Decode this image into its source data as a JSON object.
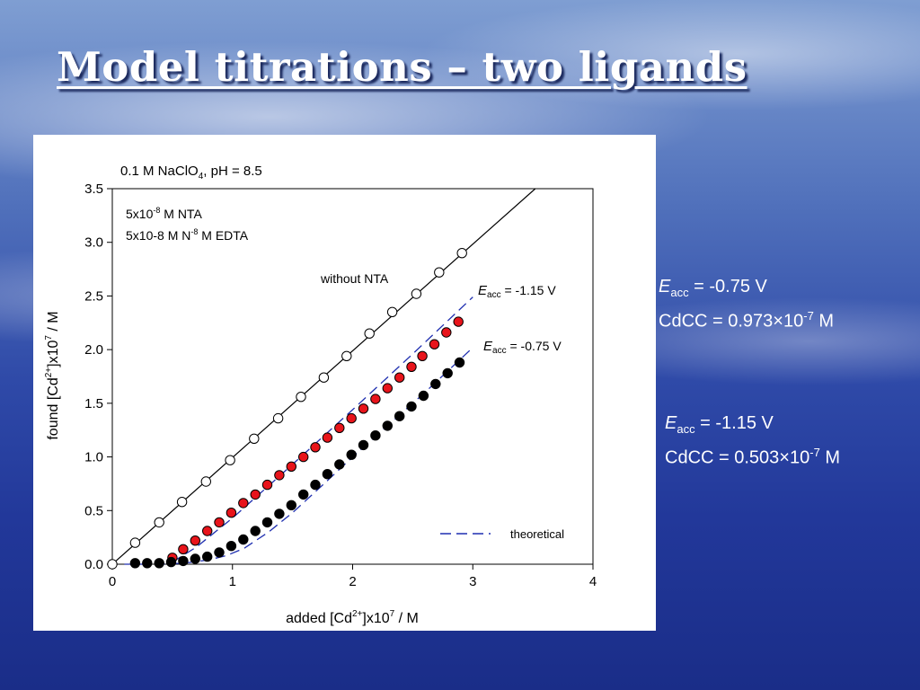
{
  "slide": {
    "title": "Model titrations – two ligands"
  },
  "notes": [
    {
      "e_symbol": "E",
      "e_sub": "acc",
      "e_value": " = -0.75 V",
      "cdcc_label": "CdCC = 0.973×10",
      "cdcc_exp": "-7",
      "cdcc_unit": " M"
    },
    {
      "e_symbol": "E",
      "e_sub": "acc",
      "e_value": " = -1.15 V",
      "cdcc_label": "CdCC = 0.503×10",
      "cdcc_exp": "-7",
      "cdcc_unit": " M"
    }
  ],
  "chart_data": {
    "type": "scatter",
    "title_parts": {
      "pre": "0.1 M NaClO",
      "sub": "4",
      "post": ", pH = 8.5"
    },
    "xlabel_parts": {
      "pre": "added [Cd",
      "sup1": "2+",
      "mid": "]x10",
      "sup2": "7",
      "post": " / M"
    },
    "ylabel_parts": {
      "pre": "found [Cd",
      "sup1": "2+",
      "mid": "]x10",
      "sup2": "7",
      "post": " / M"
    },
    "xlim": [
      0,
      4
    ],
    "ylim": [
      0,
      3.5
    ],
    "xticks": [
      "0",
      "1",
      "2",
      "3",
      "4"
    ],
    "yticks": [
      "0.0",
      "0.5",
      "1.0",
      "1.5",
      "2.0",
      "2.5",
      "3.0",
      "3.5"
    ],
    "conditions": [
      {
        "pre": "5x10",
        "sup": "-8",
        "post": " M NTA"
      },
      {
        "pre": "5x10-8 M N",
        "sup": "-8",
        "post": " M EDTA"
      }
    ],
    "annotations": {
      "without_nta": "without NTA",
      "eacc_115": {
        "symbol": "E",
        "sub": "acc",
        "value": " = -1.15 V"
      },
      "eacc_075": {
        "symbol": "E",
        "sub": "acc",
        "value": " = -0.75 V"
      }
    },
    "legend": {
      "entries": [
        "theoretical"
      ],
      "position": "bottom-right"
    },
    "series": [
      {
        "name": "without NTA",
        "style": "open-circle",
        "color": "#ffffff",
        "x": [
          0,
          0.19,
          0.39,
          0.58,
          0.78,
          0.98,
          1.18,
          1.38,
          1.57,
          1.76,
          1.95,
          2.14,
          2.33,
          2.53,
          2.72,
          2.91
        ],
        "y": [
          0,
          0.2,
          0.39,
          0.58,
          0.77,
          0.97,
          1.17,
          1.36,
          1.56,
          1.74,
          1.94,
          2.15,
          2.35,
          2.52,
          2.72,
          2.9
        ]
      },
      {
        "name": "Eacc = -1.15 V",
        "style": "filled-circle",
        "color": "#e8141b",
        "x": [
          0.5,
          0.59,
          0.69,
          0.79,
          0.89,
          0.99,
          1.09,
          1.19,
          1.29,
          1.39,
          1.49,
          1.59,
          1.69,
          1.79,
          1.89,
          1.99,
          2.09,
          2.19,
          2.29,
          2.39,
          2.49,
          2.58,
          2.68,
          2.78,
          2.88
        ],
        "y": [
          0.06,
          0.14,
          0.22,
          0.31,
          0.39,
          0.48,
          0.57,
          0.65,
          0.74,
          0.83,
          0.91,
          1.0,
          1.09,
          1.18,
          1.27,
          1.36,
          1.45,
          1.54,
          1.64,
          1.74,
          1.84,
          1.94,
          2.05,
          2.16,
          2.26
        ]
      },
      {
        "name": "Eacc = -0.75 V",
        "style": "filled-circle",
        "color": "#000000",
        "x": [
          0.19,
          0.29,
          0.39,
          0.49,
          0.59,
          0.69,
          0.79,
          0.89,
          0.99,
          1.09,
          1.19,
          1.29,
          1.39,
          1.49,
          1.59,
          1.69,
          1.79,
          1.89,
          1.99,
          2.09,
          2.19,
          2.29,
          2.39,
          2.49,
          2.59,
          2.69,
          2.79,
          2.89
        ],
        "y": [
          0.01,
          0.01,
          0.01,
          0.02,
          0.03,
          0.05,
          0.07,
          0.11,
          0.17,
          0.23,
          0.31,
          0.39,
          0.47,
          0.55,
          0.65,
          0.74,
          0.84,
          0.93,
          1.02,
          1.11,
          1.2,
          1.29,
          1.38,
          1.47,
          1.57,
          1.68,
          1.78,
          1.88
        ]
      },
      {
        "name": "line without NTA",
        "style": "solid-line",
        "color": "#000000",
        "x": [
          0,
          3.52
        ],
        "y": [
          0,
          3.5
        ]
      },
      {
        "name": "theoretical -1.15 V",
        "style": "dashed-line",
        "color": "#1f2fb0",
        "x": [
          0.5,
          0.7,
          1.0,
          1.5,
          2.0,
          2.5,
          3.0
        ],
        "y": [
          0.02,
          0.16,
          0.43,
          0.93,
          1.44,
          1.96,
          2.49
        ]
      },
      {
        "name": "theoretical -0.75 V",
        "style": "dashed-line",
        "color": "#1f2fb0",
        "x": [
          0.1,
          0.4,
          0.6,
          0.8,
          0.95,
          1.1,
          1.3,
          1.5,
          1.8,
          2.0,
          2.3,
          2.6,
          3.0
        ],
        "y": [
          0.0,
          0.0,
          0.01,
          0.04,
          0.08,
          0.15,
          0.3,
          0.48,
          0.79,
          1.0,
          1.3,
          1.6,
          2.02
        ]
      }
    ]
  }
}
